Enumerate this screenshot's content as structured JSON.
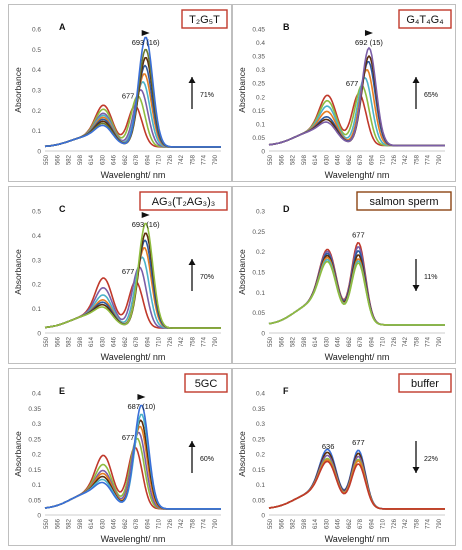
{
  "figure": {
    "panels": [
      {
        "letter": "A",
        "label": "T₂G₅T",
        "label_color": "#c0392b",
        "xlabel": "Wavelenght/ nm",
        "ylabel": "Absorbance",
        "peak_annot": "693 (16)",
        "left_annot": "677",
        "extra_annot": "",
        "pct": "71%",
        "arrow_dir": "up",
        "yticks": [
          "0",
          "0.1",
          "0.2",
          "0.3",
          "0.4",
          "0.5",
          "0.6"
        ],
        "xticks": [
          "550",
          "566",
          "582",
          "598",
          "614",
          "630",
          "646",
          "662",
          "678",
          "694",
          "710",
          "726",
          "742",
          "758",
          "774",
          "790"
        ]
      },
      {
        "letter": "B",
        "label": "G₄T₄G₄",
        "label_color": "#c0392b",
        "xlabel": "Wavelenght/ nm",
        "ylabel": "Absorbance",
        "peak_annot": "692 (15)",
        "left_annot": "677",
        "extra_annot": "",
        "pct": "65%",
        "arrow_dir": "up",
        "yticks": [
          "0",
          "0.05",
          "0.1",
          "0.15",
          "0.2",
          "0.25",
          "0.3",
          "0.35",
          "0.4",
          "0.45"
        ],
        "xticks": [
          "550",
          "566",
          "582",
          "598",
          "614",
          "630",
          "646",
          "662",
          "678",
          "694",
          "710",
          "726",
          "742",
          "758",
          "774",
          "790"
        ]
      },
      {
        "letter": "C",
        "label": "AG₃(T₂AG₃)₃",
        "label_color": "#c0392b",
        "xlabel": "Wavelenght/ nm",
        "ylabel": "Absorbance",
        "peak_annot": "693 (16)",
        "left_annot": "677",
        "extra_annot": "",
        "pct": "70%",
        "arrow_dir": "up",
        "yticks": [
          "0",
          "0.1",
          "0.2",
          "0.3",
          "0.4",
          "0.5"
        ],
        "xticks": [
          "550",
          "566",
          "582",
          "598",
          "614",
          "630",
          "646",
          "662",
          "678",
          "694",
          "710",
          "726",
          "742",
          "758",
          "774",
          "790"
        ]
      },
      {
        "letter": "D",
        "label": "salmon sperm",
        "label_color": "#8b4513",
        "xlabel": "Wavelenght/ nm",
        "ylabel": "Absorbance",
        "peak_annot": "",
        "left_annot": "677",
        "extra_annot": "",
        "pct": "11%",
        "arrow_dir": "down",
        "yticks": [
          "0",
          "0.05",
          "0.1",
          "0.15",
          "0.2",
          "0.25",
          "0.3"
        ],
        "xticks": [
          "550",
          "566",
          "582",
          "598",
          "614",
          "630",
          "646",
          "662",
          "678",
          "694",
          "710",
          "726",
          "742",
          "758",
          "774",
          "790"
        ]
      },
      {
        "letter": "E",
        "label": "5GC",
        "label_color": "#c0392b",
        "xlabel": "Wavelenght/ nm",
        "ylabel": "Absorbance",
        "peak_annot": "687 (10)",
        "left_annot": "677",
        "extra_annot": "",
        "pct": "60%",
        "arrow_dir": "up",
        "yticks": [
          "0",
          "0.05",
          "0.1",
          "0.15",
          "0.2",
          "0.25",
          "0.3",
          "0.35",
          "0.4"
        ],
        "xticks": [
          "550",
          "566",
          "582",
          "598",
          "614",
          "630",
          "646",
          "662",
          "678",
          "694",
          "710",
          "726",
          "742",
          "758",
          "774",
          "790"
        ]
      },
      {
        "letter": "F",
        "label": "buffer",
        "label_color": "#c0392b",
        "xlabel": "Wavelenght/ nm",
        "ylabel": "Absorbance",
        "peak_annot": "",
        "left_annot": "677",
        "extra_annot": "636",
        "pct": "22%",
        "arrow_dir": "down",
        "yticks": [
          "0",
          "0.05",
          "0.1",
          "0.15",
          "0.2",
          "0.25",
          "0.3",
          "0.35",
          "0.4"
        ],
        "xticks": [
          "550",
          "566",
          "582",
          "598",
          "614",
          "630",
          "646",
          "662",
          "678",
          "694",
          "710",
          "726",
          "742",
          "758",
          "774",
          "790"
        ]
      }
    ]
  },
  "chart_data": [
    {
      "type": "line",
      "panel": "A",
      "title": "T₂G₅T",
      "xlabel": "Wavelenght/ nm",
      "ylabel": "Absorbance",
      "xlim": [
        550,
        800
      ],
      "ylim": [
        0,
        0.6
      ],
      "grid": false,
      "legend": "none",
      "peak_shift": {
        "from": 677,
        "to": 693
      },
      "series": [
        {
          "color": "#c0392b",
          "peak_a": 0.2,
          "peak_b": 0.22,
          "peak_b_nm": 678
        },
        {
          "color": "#8fbc3f",
          "peak_a": 0.18,
          "peak_b": 0.27,
          "peak_b_nm": 682
        },
        {
          "color": "#7b5ea7",
          "peak_a": 0.16,
          "peak_b": 0.3,
          "peak_b_nm": 686
        },
        {
          "color": "#4bb3c9",
          "peak_a": 0.15,
          "peak_b": 0.34,
          "peak_b_nm": 689
        },
        {
          "color": "#e67e22",
          "peak_a": 0.14,
          "peak_b": 0.38,
          "peak_b_nm": 691
        },
        {
          "color": "#2c5aa0",
          "peak_a": 0.13,
          "peak_b": 0.42,
          "peak_b_nm": 692
        },
        {
          "color": "#5a2d0c",
          "peak_a": 0.12,
          "peak_b": 0.46,
          "peak_b_nm": 693
        },
        {
          "color": "#6b7b2f",
          "peak_a": 0.11,
          "peak_b": 0.5,
          "peak_b_nm": 693
        },
        {
          "color": "#3a6fd8",
          "peak_a": 0.1,
          "peak_b": 0.56,
          "peak_b_nm": 693
        }
      ]
    },
    {
      "type": "line",
      "panel": "B",
      "title": "G₄T₄G₄",
      "xlabel": "Wavelenght/ nm",
      "ylabel": "Absorbance",
      "xlim": [
        550,
        800
      ],
      "ylim": [
        0,
        0.45
      ],
      "grid": false,
      "legend": "none",
      "peak_shift": {
        "from": 677,
        "to": 692
      },
      "series": [
        {
          "color": "#c0392b",
          "peak_a": 0.18,
          "peak_b": 0.21,
          "peak_b_nm": 678
        },
        {
          "color": "#8fbc3f",
          "peak_a": 0.16,
          "peak_b": 0.24,
          "peak_b_nm": 682
        },
        {
          "color": "#4bb3c9",
          "peak_a": 0.14,
          "peak_b": 0.27,
          "peak_b_nm": 686
        },
        {
          "color": "#e67e22",
          "peak_a": 0.12,
          "peak_b": 0.3,
          "peak_b_nm": 689
        },
        {
          "color": "#2c5aa0",
          "peak_a": 0.1,
          "peak_b": 0.33,
          "peak_b_nm": 691
        },
        {
          "color": "#5a2d0c",
          "peak_a": 0.09,
          "peak_b": 0.35,
          "peak_b_nm": 692
        },
        {
          "color": "#7b5ea7",
          "peak_a": 0.08,
          "peak_b": 0.38,
          "peak_b_nm": 692
        }
      ]
    },
    {
      "type": "line",
      "panel": "C",
      "title": "AG₃(T₂AG₃)₃",
      "xlabel": "Wavelenght/ nm",
      "ylabel": "Absorbance",
      "xlim": [
        550,
        800
      ],
      "ylim": [
        0,
        0.5
      ],
      "grid": false,
      "legend": "none",
      "peak_shift": {
        "from": 677,
        "to": 693
      },
      "series": [
        {
          "color": "#c0392b",
          "peak_a": 0.2,
          "peak_b": 0.21,
          "peak_b_nm": 679
        },
        {
          "color": "#7b5ea7",
          "peak_a": 0.16,
          "peak_b": 0.27,
          "peak_b_nm": 684
        },
        {
          "color": "#4bb3c9",
          "peak_a": 0.13,
          "peak_b": 0.31,
          "peak_b_nm": 688
        },
        {
          "color": "#e67e22",
          "peak_a": 0.11,
          "peak_b": 0.35,
          "peak_b_nm": 691
        },
        {
          "color": "#2c5aa0",
          "peak_a": 0.1,
          "peak_b": 0.38,
          "peak_b_nm": 692
        },
        {
          "color": "#5a2d0c",
          "peak_a": 0.09,
          "peak_b": 0.41,
          "peak_b_nm": 693
        },
        {
          "color": "#8fbc3f",
          "peak_a": 0.08,
          "peak_b": 0.45,
          "peak_b_nm": 693
        }
      ]
    },
    {
      "type": "line",
      "panel": "D",
      "title": "salmon sperm",
      "xlabel": "Wavelenght/ nm",
      "ylabel": "Absorbance",
      "xlim": [
        550,
        800
      ],
      "ylim": [
        0,
        0.3
      ],
      "grid": false,
      "legend": "none",
      "series": [
        {
          "color": "#c0392b",
          "peak_a": 0.18,
          "peak_b": 0.22,
          "peak_b_nm": 677
        },
        {
          "color": "#7b5ea7",
          "peak_a": 0.175,
          "peak_b": 0.21,
          "peak_b_nm": 677
        },
        {
          "color": "#2c5aa0",
          "peak_a": 0.17,
          "peak_b": 0.2,
          "peak_b_nm": 677
        },
        {
          "color": "#5a2d0c",
          "peak_a": 0.165,
          "peak_b": 0.19,
          "peak_b_nm": 677
        },
        {
          "color": "#e67e22",
          "peak_a": 0.16,
          "peak_b": 0.18,
          "peak_b_nm": 677
        },
        {
          "color": "#4bb3c9",
          "peak_a": 0.155,
          "peak_b": 0.175,
          "peak_b_nm": 677
        },
        {
          "color": "#8fbc3f",
          "peak_a": 0.15,
          "peak_b": 0.17,
          "peak_b_nm": 677
        }
      ]
    },
    {
      "type": "line",
      "panel": "E",
      "title": "5GC",
      "xlabel": "Wavelenght/ nm",
      "ylabel": "Absorbance",
      "xlim": [
        550,
        800
      ],
      "ylim": [
        0,
        0.4
      ],
      "grid": false,
      "legend": "none",
      "peak_shift": {
        "from": 677,
        "to": 687
      },
      "series": [
        {
          "color": "#c0392b",
          "peak_a": 0.17,
          "peak_b": 0.22,
          "peak_b_nm": 678
        },
        {
          "color": "#8fbc3f",
          "peak_a": 0.14,
          "peak_b": 0.25,
          "peak_b_nm": 681
        },
        {
          "color": "#7b5ea7",
          "peak_a": 0.12,
          "peak_b": 0.27,
          "peak_b_nm": 683
        },
        {
          "color": "#e67e22",
          "peak_a": 0.11,
          "peak_b": 0.29,
          "peak_b_nm": 685
        },
        {
          "color": "#5a2d0c",
          "peak_a": 0.1,
          "peak_b": 0.31,
          "peak_b_nm": 686
        },
        {
          "color": "#4bb3c9",
          "peak_a": 0.09,
          "peak_b": 0.33,
          "peak_b_nm": 687
        },
        {
          "color": "#3a6fd8",
          "peak_a": 0.08,
          "peak_b": 0.36,
          "peak_b_nm": 687
        }
      ]
    },
    {
      "type": "line",
      "panel": "F",
      "title": "buffer",
      "xlabel": "Wavelenght/ nm",
      "ylabel": "Absorbance",
      "xlim": [
        550,
        800
      ],
      "ylim": [
        0,
        0.4
      ],
      "grid": false,
      "legend": "none",
      "series": [
        {
          "color": "#3a6fd8",
          "peak_a": 0.19,
          "peak_b": 0.21,
          "peak_b_nm": 677
        },
        {
          "color": "#5a2d0c",
          "peak_a": 0.18,
          "peak_b": 0.2,
          "peak_b_nm": 677
        },
        {
          "color": "#7b5ea7",
          "peak_a": 0.17,
          "peak_b": 0.19,
          "peak_b_nm": 677
        },
        {
          "color": "#8fbc3f",
          "peak_a": 0.16,
          "peak_b": 0.18,
          "peak_b_nm": 677
        },
        {
          "color": "#e67e22",
          "peak_a": 0.155,
          "peak_b": 0.175,
          "peak_b_nm": 677
        },
        {
          "color": "#c0392b",
          "peak_a": 0.15,
          "peak_b": 0.165,
          "peak_b_nm": 677
        }
      ]
    }
  ]
}
